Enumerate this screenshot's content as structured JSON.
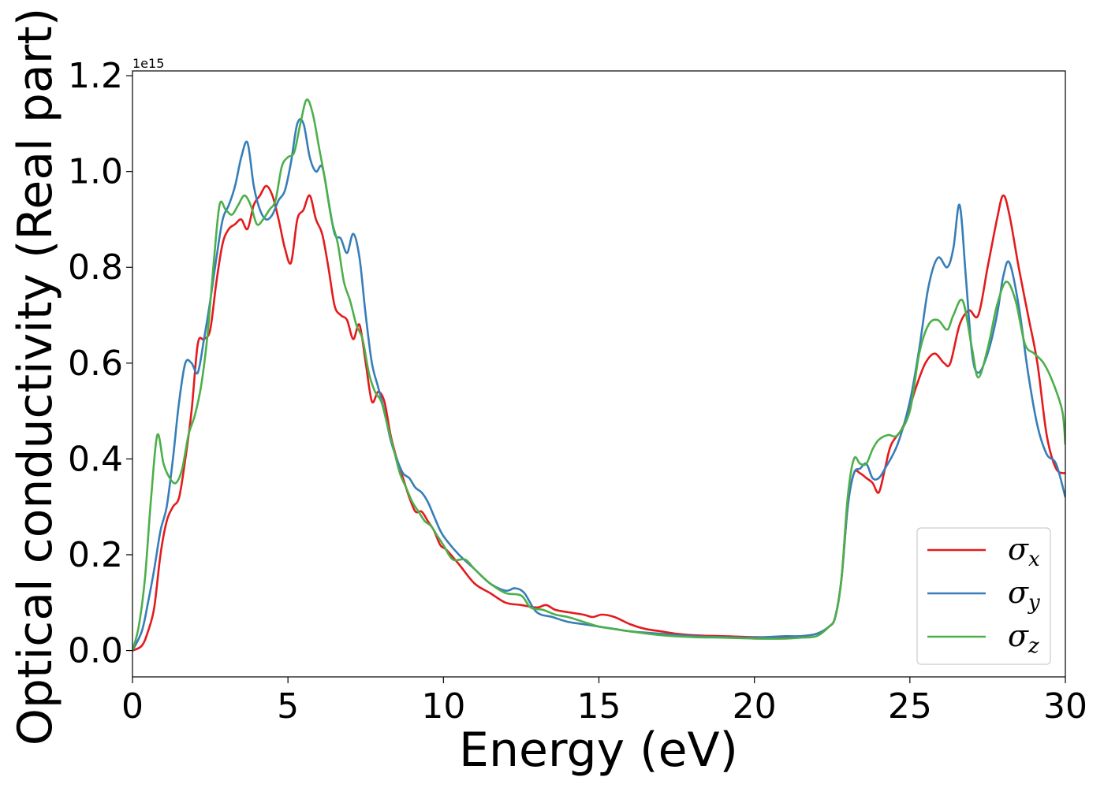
{
  "chart_data": {
    "type": "line",
    "title": "",
    "xlabel": "Energy (eV)",
    "ylabel": "Optical conductivity (Real part)",
    "y_offset_label": "1e15",
    "xlim": [
      0,
      30
    ],
    "ylim": [
      -0.055,
      1.21
    ],
    "x_ticks": [
      0,
      5,
      10,
      15,
      20,
      25,
      30
    ],
    "x_tick_labels": [
      "0",
      "5",
      "10",
      "15",
      "20",
      "25",
      "30"
    ],
    "y_ticks": [
      0.0,
      0.2,
      0.4,
      0.6,
      0.8,
      1.0,
      1.2
    ],
    "y_tick_labels": [
      "0.0",
      "0.2",
      "0.4",
      "0.6",
      "0.8",
      "1.0",
      "1.2"
    ],
    "grid": false,
    "legend_position": "lower-right",
    "series": [
      {
        "name": "σx",
        "legend_base": "σ",
        "legend_sub": "x",
        "color": "#e41a1c",
        "points": [
          [
            0,
            0
          ],
          [
            0.3,
            0.01
          ],
          [
            0.5,
            0.04
          ],
          [
            0.7,
            0.09
          ],
          [
            0.9,
            0.2
          ],
          [
            1.1,
            0.27
          ],
          [
            1.3,
            0.3
          ],
          [
            1.5,
            0.32
          ],
          [
            1.7,
            0.4
          ],
          [
            1.9,
            0.5
          ],
          [
            2.1,
            0.64
          ],
          [
            2.3,
            0.65
          ],
          [
            2.5,
            0.67
          ],
          [
            2.7,
            0.77
          ],
          [
            2.9,
            0.85
          ],
          [
            3.1,
            0.88
          ],
          [
            3.3,
            0.89
          ],
          [
            3.5,
            0.9
          ],
          [
            3.7,
            0.88
          ],
          [
            3.9,
            0.93
          ],
          [
            4.1,
            0.95
          ],
          [
            4.3,
            0.97
          ],
          [
            4.5,
            0.95
          ],
          [
            4.7,
            0.9
          ],
          [
            4.9,
            0.84
          ],
          [
            5.1,
            0.81
          ],
          [
            5.3,
            0.9
          ],
          [
            5.5,
            0.92
          ],
          [
            5.7,
            0.95
          ],
          [
            5.9,
            0.9
          ],
          [
            6.1,
            0.87
          ],
          [
            6.3,
            0.8
          ],
          [
            6.5,
            0.72
          ],
          [
            6.7,
            0.7
          ],
          [
            6.9,
            0.69
          ],
          [
            7.1,
            0.65
          ],
          [
            7.3,
            0.68
          ],
          [
            7.5,
            0.6
          ],
          [
            7.7,
            0.52
          ],
          [
            7.9,
            0.54
          ],
          [
            8.1,
            0.52
          ],
          [
            8.3,
            0.45
          ],
          [
            8.5,
            0.4
          ],
          [
            8.7,
            0.36
          ],
          [
            8.9,
            0.32
          ],
          [
            9.1,
            0.29
          ],
          [
            9.3,
            0.29
          ],
          [
            9.5,
            0.27
          ],
          [
            9.7,
            0.25
          ],
          [
            9.9,
            0.22
          ],
          [
            10.1,
            0.21
          ],
          [
            10.5,
            0.18
          ],
          [
            11,
            0.14
          ],
          [
            11.5,
            0.12
          ],
          [
            12,
            0.1
          ],
          [
            12.5,
            0.095
          ],
          [
            13,
            0.09
          ],
          [
            13.3,
            0.095
          ],
          [
            13.6,
            0.085
          ],
          [
            14,
            0.08
          ],
          [
            14.5,
            0.075
          ],
          [
            14.8,
            0.07
          ],
          [
            15.1,
            0.075
          ],
          [
            15.5,
            0.07
          ],
          [
            16,
            0.055
          ],
          [
            16.5,
            0.045
          ],
          [
            17,
            0.04
          ],
          [
            17.5,
            0.035
          ],
          [
            18,
            0.032
          ],
          [
            19,
            0.03
          ],
          [
            20,
            0.028
          ],
          [
            21,
            0.028
          ],
          [
            21.5,
            0.03
          ],
          [
            22,
            0.035
          ],
          [
            22.4,
            0.05
          ],
          [
            22.6,
            0.07
          ],
          [
            22.8,
            0.15
          ],
          [
            23,
            0.3
          ],
          [
            23.2,
            0.37
          ],
          [
            23.4,
            0.37
          ],
          [
            23.6,
            0.36
          ],
          [
            23.8,
            0.35
          ],
          [
            24,
            0.33
          ],
          [
            24.2,
            0.38
          ],
          [
            24.4,
            0.43
          ],
          [
            24.8,
            0.47
          ],
          [
            25.2,
            0.55
          ],
          [
            25.5,
            0.6
          ],
          [
            25.8,
            0.62
          ],
          [
            26.1,
            0.6
          ],
          [
            26.3,
            0.6
          ],
          [
            26.6,
            0.68
          ],
          [
            26.9,
            0.71
          ],
          [
            27.2,
            0.7
          ],
          [
            27.5,
            0.8
          ],
          [
            27.8,
            0.9
          ],
          [
            28,
            0.95
          ],
          [
            28.2,
            0.91
          ],
          [
            28.5,
            0.8
          ],
          [
            28.8,
            0.7
          ],
          [
            29.1,
            0.6
          ],
          [
            29.4,
            0.45
          ],
          [
            29.7,
            0.38
          ],
          [
            30,
            0.37
          ]
        ]
      },
      {
        "name": "σy",
        "legend_base": "σ",
        "legend_sub": "y",
        "color": "#377eb8",
        "points": [
          [
            0,
            0
          ],
          [
            0.3,
            0.04
          ],
          [
            0.5,
            0.1
          ],
          [
            0.7,
            0.17
          ],
          [
            0.9,
            0.25
          ],
          [
            1.1,
            0.3
          ],
          [
            1.3,
            0.4
          ],
          [
            1.5,
            0.52
          ],
          [
            1.7,
            0.6
          ],
          [
            1.9,
            0.6
          ],
          [
            2.1,
            0.58
          ],
          [
            2.3,
            0.65
          ],
          [
            2.5,
            0.73
          ],
          [
            2.7,
            0.82
          ],
          [
            2.9,
            0.9
          ],
          [
            3.1,
            0.93
          ],
          [
            3.3,
            0.97
          ],
          [
            3.5,
            1.03
          ],
          [
            3.7,
            1.06
          ],
          [
            3.9,
            0.97
          ],
          [
            4.1,
            0.92
          ],
          [
            4.3,
            0.9
          ],
          [
            4.5,
            0.91
          ],
          [
            4.7,
            0.94
          ],
          [
            4.9,
            0.96
          ],
          [
            5.1,
            1.02
          ],
          [
            5.3,
            1.1
          ],
          [
            5.5,
            1.1
          ],
          [
            5.7,
            1.03
          ],
          [
            5.9,
            1.0
          ],
          [
            6.1,
            1.01
          ],
          [
            6.3,
            0.94
          ],
          [
            6.5,
            0.87
          ],
          [
            6.7,
            0.86
          ],
          [
            6.9,
            0.83
          ],
          [
            7.1,
            0.87
          ],
          [
            7.3,
            0.82
          ],
          [
            7.5,
            0.7
          ],
          [
            7.7,
            0.6
          ],
          [
            7.9,
            0.55
          ],
          [
            8.1,
            0.5
          ],
          [
            8.3,
            0.44
          ],
          [
            8.5,
            0.4
          ],
          [
            8.7,
            0.37
          ],
          [
            8.9,
            0.36
          ],
          [
            9.1,
            0.34
          ],
          [
            9.3,
            0.33
          ],
          [
            9.5,
            0.31
          ],
          [
            9.7,
            0.28
          ],
          [
            9.9,
            0.25
          ],
          [
            10.1,
            0.23
          ],
          [
            10.5,
            0.2
          ],
          [
            11,
            0.17
          ],
          [
            11.5,
            0.14
          ],
          [
            12,
            0.125
          ],
          [
            12.3,
            0.13
          ],
          [
            12.6,
            0.12
          ],
          [
            13,
            0.08
          ],
          [
            13.5,
            0.07
          ],
          [
            14,
            0.06
          ],
          [
            14.5,
            0.055
          ],
          [
            15,
            0.05
          ],
          [
            15.5,
            0.045
          ],
          [
            16,
            0.04
          ],
          [
            17,
            0.035
          ],
          [
            18,
            0.03
          ],
          [
            19,
            0.028
          ],
          [
            20,
            0.027
          ],
          [
            21,
            0.03
          ],
          [
            21.5,
            0.03
          ],
          [
            22,
            0.035
          ],
          [
            22.4,
            0.05
          ],
          [
            22.6,
            0.07
          ],
          [
            22.8,
            0.15
          ],
          [
            23,
            0.3
          ],
          [
            23.2,
            0.37
          ],
          [
            23.4,
            0.38
          ],
          [
            23.6,
            0.39
          ],
          [
            23.8,
            0.36
          ],
          [
            24,
            0.36
          ],
          [
            24.2,
            0.38
          ],
          [
            24.6,
            0.43
          ],
          [
            25,
            0.52
          ],
          [
            25.3,
            0.63
          ],
          [
            25.6,
            0.76
          ],
          [
            25.9,
            0.82
          ],
          [
            26.2,
            0.8
          ],
          [
            26.4,
            0.84
          ],
          [
            26.6,
            0.93
          ],
          [
            26.8,
            0.78
          ],
          [
            27,
            0.62
          ],
          [
            27.2,
            0.58
          ],
          [
            27.5,
            0.62
          ],
          [
            27.8,
            0.7
          ],
          [
            28,
            0.78
          ],
          [
            28.2,
            0.81
          ],
          [
            28.5,
            0.72
          ],
          [
            28.8,
            0.58
          ],
          [
            29.1,
            0.47
          ],
          [
            29.4,
            0.41
          ],
          [
            29.7,
            0.39
          ],
          [
            30,
            0.32
          ]
        ]
      },
      {
        "name": "σz",
        "legend_base": "σ",
        "legend_sub": "z",
        "color": "#4daf4a",
        "points": [
          [
            0,
            0
          ],
          [
            0.2,
            0.05
          ],
          [
            0.4,
            0.15
          ],
          [
            0.6,
            0.32
          ],
          [
            0.8,
            0.45
          ],
          [
            1.0,
            0.39
          ],
          [
            1.2,
            0.36
          ],
          [
            1.4,
            0.35
          ],
          [
            1.6,
            0.38
          ],
          [
            1.8,
            0.45
          ],
          [
            2.0,
            0.49
          ],
          [
            2.2,
            0.55
          ],
          [
            2.4,
            0.65
          ],
          [
            2.6,
            0.8
          ],
          [
            2.8,
            0.93
          ],
          [
            3.0,
            0.92
          ],
          [
            3.2,
            0.91
          ],
          [
            3.4,
            0.93
          ],
          [
            3.6,
            0.95
          ],
          [
            3.8,
            0.93
          ],
          [
            4.0,
            0.89
          ],
          [
            4.2,
            0.9
          ],
          [
            4.4,
            0.92
          ],
          [
            4.6,
            0.94
          ],
          [
            4.8,
            1.01
          ],
          [
            5.0,
            1.03
          ],
          [
            5.2,
            1.04
          ],
          [
            5.4,
            1.1
          ],
          [
            5.6,
            1.15
          ],
          [
            5.8,
            1.12
          ],
          [
            6.0,
            1.05
          ],
          [
            6.2,
            0.98
          ],
          [
            6.4,
            0.9
          ],
          [
            6.6,
            0.85
          ],
          [
            6.8,
            0.77
          ],
          [
            7.0,
            0.73
          ],
          [
            7.2,
            0.68
          ],
          [
            7.4,
            0.65
          ],
          [
            7.6,
            0.58
          ],
          [
            7.8,
            0.54
          ],
          [
            8.0,
            0.52
          ],
          [
            8.2,
            0.47
          ],
          [
            8.4,
            0.42
          ],
          [
            8.6,
            0.37
          ],
          [
            8.8,
            0.34
          ],
          [
            9.0,
            0.31
          ],
          [
            9.2,
            0.29
          ],
          [
            9.4,
            0.27
          ],
          [
            9.6,
            0.26
          ],
          [
            9.8,
            0.24
          ],
          [
            10.0,
            0.22
          ],
          [
            10.3,
            0.19
          ],
          [
            10.7,
            0.19
          ],
          [
            11,
            0.17
          ],
          [
            11.5,
            0.14
          ],
          [
            12,
            0.12
          ],
          [
            12.5,
            0.115
          ],
          [
            12.8,
            0.09
          ],
          [
            13.2,
            0.085
          ],
          [
            13.6,
            0.075
          ],
          [
            14,
            0.07
          ],
          [
            14.5,
            0.06
          ],
          [
            15,
            0.05
          ],
          [
            15.5,
            0.045
          ],
          [
            16,
            0.04
          ],
          [
            17,
            0.032
          ],
          [
            18,
            0.028
          ],
          [
            19,
            0.027
          ],
          [
            20,
            0.025
          ],
          [
            21,
            0.025
          ],
          [
            21.5,
            0.027
          ],
          [
            22,
            0.03
          ],
          [
            22.4,
            0.05
          ],
          [
            22.6,
            0.07
          ],
          [
            22.8,
            0.15
          ],
          [
            23,
            0.32
          ],
          [
            23.2,
            0.4
          ],
          [
            23.4,
            0.39
          ],
          [
            23.6,
            0.39
          ],
          [
            23.8,
            0.42
          ],
          [
            24,
            0.44
          ],
          [
            24.3,
            0.45
          ],
          [
            24.6,
            0.45
          ],
          [
            25,
            0.5
          ],
          [
            25.3,
            0.62
          ],
          [
            25.6,
            0.68
          ],
          [
            25.9,
            0.69
          ],
          [
            26.2,
            0.67
          ],
          [
            26.4,
            0.7
          ],
          [
            26.7,
            0.73
          ],
          [
            27,
            0.63
          ],
          [
            27.2,
            0.57
          ],
          [
            27.5,
            0.63
          ],
          [
            27.8,
            0.72
          ],
          [
            28.1,
            0.77
          ],
          [
            28.4,
            0.73
          ],
          [
            28.7,
            0.64
          ],
          [
            29.0,
            0.62
          ],
          [
            29.3,
            0.6
          ],
          [
            29.6,
            0.56
          ],
          [
            29.9,
            0.5
          ],
          [
            30,
            0.43
          ]
        ]
      }
    ]
  }
}
